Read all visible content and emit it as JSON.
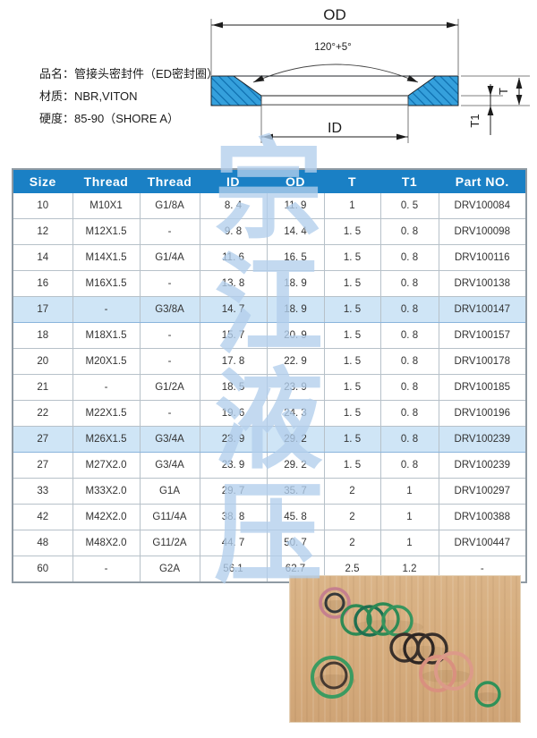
{
  "product_info": {
    "lines": [
      "品名：管接头密封件（ED密封圈）",
      "材质：NBR,VITON",
      "硬度：85-90（SHORE A）"
    ]
  },
  "diagram": {
    "od_label": "OD",
    "id_label": "ID",
    "t_label": "T",
    "t1_label": "T1",
    "angle_label": "120°+5°"
  },
  "watermark": {
    "characters": [
      "宗",
      "江",
      "液",
      "压"
    ]
  },
  "table": {
    "headers": [
      "Size",
      "Thread",
      "Thread",
      "ID",
      "OD",
      "T",
      "T1",
      "Part NO."
    ],
    "rows": [
      {
        "cells": [
          "10",
          "M10X1",
          "G1/8A",
          "8. 4",
          "11. 9",
          "1",
          "0. 5",
          "DRV100084"
        ],
        "highlight": false
      },
      {
        "cells": [
          "12",
          "M12X1.5",
          "-",
          "9. 8",
          "14. 4",
          "1. 5",
          "0. 8",
          "DRV100098"
        ],
        "highlight": false
      },
      {
        "cells": [
          "14",
          "M14X1.5",
          "G1/4A",
          "11. 6",
          "16. 5",
          "1. 5",
          "0. 8",
          "DRV100116"
        ],
        "highlight": false
      },
      {
        "cells": [
          "16",
          "M16X1.5",
          "-",
          "13. 8",
          "18. 9",
          "1. 5",
          "0. 8",
          "DRV100138"
        ],
        "highlight": false
      },
      {
        "cells": [
          "17",
          "-",
          "G3/8A",
          "14. 7",
          "18. 9",
          "1. 5",
          "0. 8",
          "DRV100147"
        ],
        "highlight": true
      },
      {
        "cells": [
          "18",
          "M18X1.5",
          "-",
          "15. 7",
          "20. 9",
          "1. 5",
          "0. 8",
          "DRV100157"
        ],
        "highlight": false
      },
      {
        "cells": [
          "20",
          "M20X1.5",
          "-",
          "17. 8",
          "22. 9",
          "1. 5",
          "0. 8",
          "DRV100178"
        ],
        "highlight": false
      },
      {
        "cells": [
          "21",
          "-",
          "G1/2A",
          "18. 5",
          "23. 9",
          "1. 5",
          "0. 8",
          "DRV100185"
        ],
        "highlight": false
      },
      {
        "cells": [
          "22",
          "M22X1.5",
          "-",
          "19. 6",
          "24. 3",
          "1. 5",
          "0. 8",
          "DRV100196"
        ],
        "highlight": false
      },
      {
        "cells": [
          "27",
          "M26X1.5",
          "G3/4A",
          "23. 9",
          "29. 2",
          "1. 5",
          "0. 8",
          "DRV100239"
        ],
        "highlight": true
      },
      {
        "cells": [
          "27",
          "M27X2.0",
          "G3/4A",
          "23. 9",
          "29. 2",
          "1. 5",
          "0. 8",
          "DRV100239"
        ],
        "highlight": false
      },
      {
        "cells": [
          "33",
          "M33X2.0",
          "G1A",
          "29. 7",
          "35. 7",
          "2",
          "1",
          "DRV100297"
        ],
        "highlight": false
      },
      {
        "cells": [
          "42",
          "M42X2.0",
          "G11/4A",
          "38. 8",
          "45. 8",
          "2",
          "1",
          "DRV100388"
        ],
        "highlight": false
      },
      {
        "cells": [
          "48",
          "M48X2.0",
          "G11/2A",
          "44. 7",
          "50. 7",
          "2",
          "1",
          "DRV100447"
        ],
        "highlight": false
      },
      {
        "cells": [
          "60",
          "-",
          "G2A",
          "56.1",
          "62.7",
          "2.5",
          "1.2",
          "-"
        ],
        "highlight": false
      }
    ]
  },
  "photo": {
    "description": "Assorted rubber O-ring seals on a wooden surface",
    "ring_colors": [
      "pink",
      "green",
      "black",
      "salmon"
    ]
  },
  "colors": {
    "header_blue": "#1a80c5",
    "highlight_blue": "#cfe5f6",
    "diagram_blue": "#35a0dc",
    "watermark_blue": "#b2ceec"
  }
}
